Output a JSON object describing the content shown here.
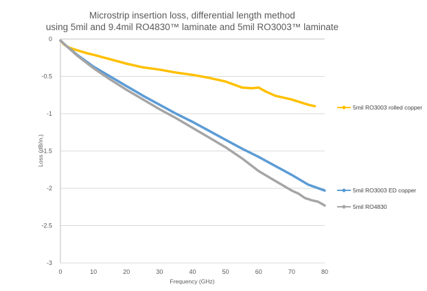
{
  "chart_data": {
    "type": "line",
    "title": [
      "Microstrip insertion loss, differential length method",
      "using 5mil and 9.4mil RO4830™ laminate and 5mil RO3003™ laminate"
    ],
    "xlabel": "Frequency (GHz)",
    "ylabel": "Loss (dB/in.)",
    "xlim": [
      0,
      80
    ],
    "ylim": [
      -3,
      0
    ],
    "x_ticks": [
      "0",
      "10",
      "20",
      "30",
      "40",
      "50",
      "60",
      "70",
      "80"
    ],
    "y_ticks": [
      "0",
      "-0.5",
      "-1",
      "-1.5",
      "-2",
      "-2.5",
      "-3"
    ],
    "grid": "horizontal",
    "legend_position": "right",
    "series": [
      {
        "name": "5mil RO3003 rolled copper",
        "color": "#FFC000",
        "x": [
          0,
          1,
          2,
          3,
          5,
          8,
          10,
          15,
          20,
          25,
          30,
          35,
          40,
          45,
          50,
          55,
          58,
          60,
          62,
          65,
          70,
          75,
          77
        ],
        "y": [
          -0.02,
          -0.07,
          -0.1,
          -0.12,
          -0.15,
          -0.19,
          -0.21,
          -0.27,
          -0.33,
          -0.38,
          -0.41,
          -0.45,
          -0.48,
          -0.52,
          -0.57,
          -0.65,
          -0.66,
          -0.65,
          -0.7,
          -0.76,
          -0.81,
          -0.88,
          -0.9
        ]
      },
      {
        "name": "5mil RO3003 ED copper",
        "color": "#5B9BD5",
        "x": [
          0,
          2,
          5,
          10,
          15,
          20,
          25,
          30,
          35,
          40,
          45,
          50,
          55,
          60,
          65,
          70,
          75,
          80
        ],
        "y": [
          -0.02,
          -0.1,
          -0.21,
          -0.37,
          -0.5,
          -0.63,
          -0.76,
          -0.88,
          -1.0,
          -1.11,
          -1.23,
          -1.35,
          -1.47,
          -1.58,
          -1.7,
          -1.82,
          -1.95,
          -2.03
        ]
      },
      {
        "name": "5mil RO4830",
        "color": "#A5A5A5",
        "x": [
          0,
          2,
          5,
          10,
          15,
          20,
          25,
          30,
          35,
          40,
          45,
          50,
          55,
          60,
          65,
          70,
          72,
          74,
          76,
          78,
          80
        ],
        "y": [
          -0.02,
          -0.1,
          -0.22,
          -0.39,
          -0.54,
          -0.68,
          -0.81,
          -0.94,
          -1.06,
          -1.19,
          -1.32,
          -1.45,
          -1.6,
          -1.77,
          -1.9,
          -2.03,
          -2.07,
          -2.13,
          -2.16,
          -2.18,
          -2.23
        ]
      }
    ]
  }
}
